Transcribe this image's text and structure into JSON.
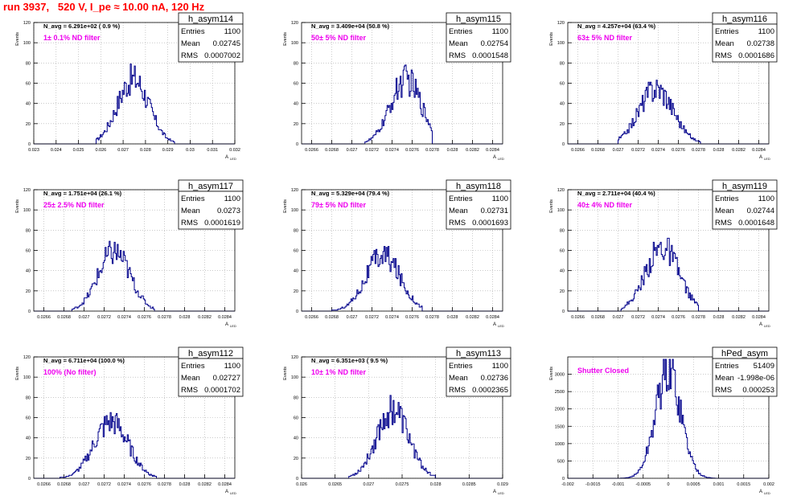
{
  "canvas_title": "run 3937,   520 V, I_pe ≈ 10.00 nA, 120 Hz",
  "colors": {
    "title": "#ff0000",
    "filter_label": "#ee00ee",
    "histogram": "#00008b",
    "grid": "#aaaaaa"
  },
  "y_axis_label": "Events",
  "x_axis_label_main": "A",
  "x_axis_label_sub": "LED",
  "chart_data": [
    {
      "type": "histogram",
      "id": "h_asym114",
      "title": "h_asym114",
      "navg": "N_avg = 6.291e+02 ( 0.9 %)",
      "filter": "1± 0.1% ND filter",
      "stats": {
        "entries_label": "Entries",
        "entries": "1100",
        "mean_label": "Mean",
        "mean": "0.02745",
        "rms_label": "RMS",
        "rms": "0.0007002"
      },
      "xlim": [
        0.023,
        0.032
      ],
      "ylim": [
        0,
        120
      ],
      "xticks": [
        "0.023",
        "0.024",
        "0.025",
        "0.026",
        "0.027",
        "0.028",
        "0.029",
        "0.03",
        "0.031",
        "0.032"
      ],
      "yticks": [
        "0",
        "20",
        "40",
        "60",
        "80",
        "100",
        "120"
      ],
      "peak_x": 0.02745,
      "peak_y": 64,
      "sigma": 0.0007,
      "range": [
        0.0258,
        0.0293
      ]
    },
    {
      "type": "histogram",
      "id": "h_asym115",
      "title": "h_asym115",
      "navg": "N_avg = 3.409e+04 (50.8 %)",
      "filter": "50± 5% ND filter",
      "stats": {
        "entries_label": "Entries",
        "entries": "1100",
        "mean_label": "Mean",
        "mean": "0.02754",
        "rms_label": "RMS",
        "rms": "0.0001548"
      },
      "xlim": [
        0.0265,
        0.0285
      ],
      "ylim": [
        0,
        120
      ],
      "xticks": [
        "0.0266",
        "0.0268",
        "0.027",
        "0.0272",
        "0.0274",
        "0.0276",
        "0.0278",
        "0.028",
        "0.0282",
        "0.0284"
      ],
      "yticks": [
        "0",
        "20",
        "40",
        "60",
        "80",
        "100",
        "120"
      ],
      "peak_x": 0.02754,
      "peak_y": 63,
      "sigma": 0.000155,
      "range": [
        0.02713,
        0.0278
      ]
    },
    {
      "type": "histogram",
      "id": "h_asym116",
      "title": "h_asym116",
      "navg": "N_avg = 4.257e+04 (63.4 %)",
      "filter": "63± 5% ND filter",
      "stats": {
        "entries_label": "Entries",
        "entries": "1100",
        "mean_label": "Mean",
        "mean": "0.02738",
        "rms_label": "RMS",
        "rms": "0.0001686"
      },
      "xlim": [
        0.0265,
        0.0285
      ],
      "ylim": [
        0,
        120
      ],
      "xticks": [
        "0.0266",
        "0.0268",
        "0.027",
        "0.0272",
        "0.0274",
        "0.0276",
        "0.0278",
        "0.028",
        "0.0282",
        "0.0284"
      ],
      "yticks": [
        "0",
        "20",
        "40",
        "60",
        "80",
        "100",
        "120"
      ],
      "peak_x": 0.02738,
      "peak_y": 55,
      "sigma": 0.00017,
      "range": [
        0.027,
        0.02782
      ]
    },
    {
      "type": "histogram",
      "id": "h_asym117",
      "title": "h_asym117",
      "navg": "N_avg = 1.751e+04 (26.1 %)",
      "filter": "25± 2.5% ND filter",
      "stats": {
        "entries_label": "Entries",
        "entries": "1100",
        "mean_label": "Mean",
        "mean": "0.0273",
        "rms_label": "RMS",
        "rms": "0.0001619"
      },
      "xlim": [
        0.0265,
        0.0285
      ],
      "ylim": [
        0,
        120
      ],
      "xticks": [
        "0.0266",
        "0.0268",
        "0.027",
        "0.0272",
        "0.0274",
        "0.0276",
        "0.0278",
        "0.028",
        "0.0282",
        "0.0284"
      ],
      "yticks": [
        "0",
        "20",
        "40",
        "60",
        "80",
        "100",
        "120"
      ],
      "peak_x": 0.0273,
      "peak_y": 58,
      "sigma": 0.00016,
      "range": [
        0.02688,
        0.0277
      ]
    },
    {
      "type": "histogram",
      "id": "h_asym118",
      "title": "h_asym118",
      "navg": "N_avg = 5.329e+04 (79.4 %)",
      "filter": "79± 5% ND filter",
      "stats": {
        "entries_label": "Entries",
        "entries": "1100",
        "mean_label": "Mean",
        "mean": "0.02731",
        "rms_label": "RMS",
        "rms": "0.0001693"
      },
      "xlim": [
        0.0265,
        0.0285
      ],
      "ylim": [
        0,
        120
      ],
      "xticks": [
        "0.0266",
        "0.0268",
        "0.027",
        "0.0272",
        "0.0274",
        "0.0276",
        "0.0278",
        "0.028",
        "0.0282",
        "0.0284"
      ],
      "yticks": [
        "0",
        "20",
        "40",
        "60",
        "80",
        "100",
        "120"
      ],
      "peak_x": 0.02731,
      "peak_y": 55,
      "sigma": 0.00017,
      "range": [
        0.0268,
        0.0277
      ]
    },
    {
      "type": "histogram",
      "id": "h_asym119",
      "title": "h_asym119",
      "navg": "N_avg = 2.711e+04 (40.4 %)",
      "filter": "40± 4% ND filter",
      "stats": {
        "entries_label": "Entries",
        "entries": "1100",
        "mean_label": "Mean",
        "mean": "0.02744",
        "rms_label": "RMS",
        "rms": "0.0001648"
      },
      "xlim": [
        0.0265,
        0.0285
      ],
      "ylim": [
        0,
        120
      ],
      "xticks": [
        "0.0266",
        "0.0268",
        "0.027",
        "0.0272",
        "0.0274",
        "0.0276",
        "0.0278",
        "0.028",
        "0.0282",
        "0.0284"
      ],
      "yticks": [
        "0",
        "20",
        "40",
        "60",
        "80",
        "100",
        "120"
      ],
      "peak_x": 0.02744,
      "peak_y": 63,
      "sigma": 0.000165,
      "range": [
        0.02703,
        0.0278
      ]
    },
    {
      "type": "histogram",
      "id": "h_asym112",
      "title": "h_asym112",
      "navg": "N_avg = 6.711e+04 (100.0 %)",
      "filter": "100% (No filter)",
      "stats": {
        "entries_label": "Entries",
        "entries": "1100",
        "mean_label": "Mean",
        "mean": "0.02727",
        "rms_label": "RMS",
        "rms": "0.0001702"
      },
      "xlim": [
        0.0265,
        0.0285
      ],
      "ylim": [
        0,
        120
      ],
      "xticks": [
        "0.0266",
        "0.0268",
        "0.027",
        "0.0272",
        "0.0274",
        "0.0276",
        "0.0278",
        "0.028",
        "0.0282",
        "0.0284"
      ],
      "yticks": [
        "0",
        "20",
        "40",
        "60",
        "80",
        "100",
        "120"
      ],
      "peak_x": 0.02727,
      "peak_y": 56,
      "sigma": 0.00017,
      "range": [
        0.02668,
        0.02772
      ]
    },
    {
      "type": "histogram",
      "id": "h_asym113",
      "title": "h_asym113",
      "navg": "N_avg = 6.351e+03 ( 9.5 %)",
      "filter": "10± 1% ND filter",
      "stats": {
        "entries_label": "Entries",
        "entries": "1100",
        "mean_label": "Mean",
        "mean": "0.02736",
        "rms_label": "RMS",
        "rms": "0.0002365"
      },
      "xlim": [
        0.026,
        0.029
      ],
      "ylim": [
        0,
        120
      ],
      "xticks": [
        "0.026",
        "0.0265",
        "0.027",
        "0.0275",
        "0.028",
        "0.0285",
        "0.029"
      ],
      "yticks": [
        "0",
        "20",
        "40",
        "60",
        "80",
        "100",
        "120"
      ],
      "peak_x": 0.02736,
      "peak_y": 68,
      "sigma": 0.00024,
      "range": [
        0.0267,
        0.028
      ]
    },
    {
      "type": "histogram",
      "id": "hPed_asym",
      "title": "hPed_asym",
      "navg": "",
      "filter": "Shutter Closed",
      "stats": {
        "entries_label": "Entries",
        "entries": "51409",
        "mean_label": "Mean",
        "mean": "-1.998e-06",
        "rms_label": "RMS",
        "rms": "0.000253"
      },
      "xlim": [
        -0.002,
        0.002
      ],
      "ylim": [
        0,
        3500
      ],
      "xticks": [
        "-0.002",
        "-0.0015",
        "-0.001",
        "-0.0005",
        "0",
        "0.0005",
        "0.001",
        "0.0015",
        "0.002"
      ],
      "yticks": [
        "0",
        "500",
        "1000",
        "1500",
        "2000",
        "2500",
        "3000"
      ],
      "peak_x": 0.0,
      "peak_y": 3130,
      "sigma": 0.000253,
      "range": [
        -0.00095,
        0.00095
      ]
    }
  ]
}
